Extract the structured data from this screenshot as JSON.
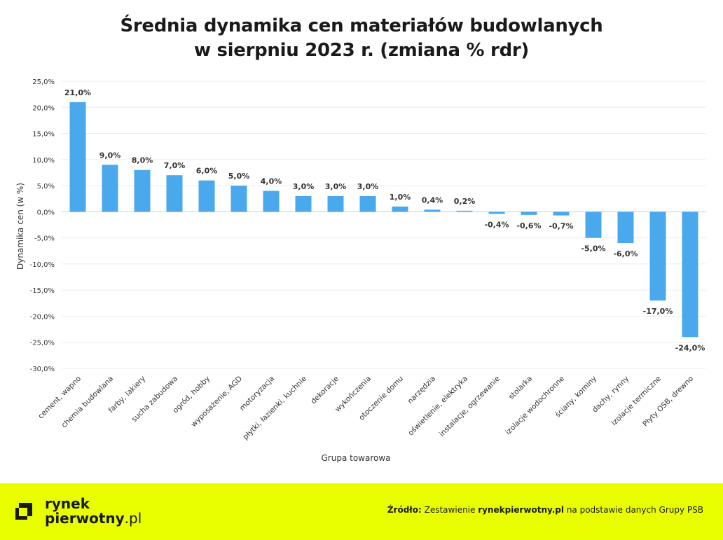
{
  "title_line1": "Średnia dynamika cen materiałów budowlanych",
  "title_line2": "w sierpniu 2023 r. (zmiana % rdr)",
  "chart_data": {
    "type": "bar",
    "categories": [
      "cement, wapno",
      "chemia budowlana",
      "farby, lakiery",
      "sucha zabudowa",
      "ogród, hobby",
      "wyposażenie, AGD",
      "motoryzacja",
      "płytki, łazienki, kuchnie",
      "dekoracje",
      "wykończenia",
      "otoczenie domu",
      "narzędzia",
      "oświetlenie, elektryka",
      "instalacje, ogrzewanie",
      "stolarka",
      "izolacje wodochronne",
      "ściany, kominy",
      "dachy, rynny",
      "izolacje termiczne",
      "Płyty OSB, drewno"
    ],
    "values": [
      21.0,
      9.0,
      8.0,
      7.0,
      6.0,
      5.0,
      4.0,
      3.0,
      3.0,
      3.0,
      1.0,
      0.4,
      0.2,
      -0.4,
      -0.6,
      -0.7,
      -5.0,
      -6.0,
      -17.0,
      -24.0
    ],
    "data_labels": [
      "21,0%",
      "9,0%",
      "8,0%",
      "7,0%",
      "6,0%",
      "5,0%",
      "4,0%",
      "3,0%",
      "3,0%",
      "3,0%",
      "1,0%",
      "0,4%",
      "0,2%",
      "-0,4%",
      "-0,6%",
      "-0,7%",
      "-5,0%",
      "-6,0%",
      "-17,0%",
      "-24,0%"
    ],
    "ylim": [
      -30,
      25
    ],
    "yticks": [
      25,
      20,
      15,
      10,
      5,
      0,
      -5,
      -10,
      -15,
      -20,
      -25,
      -30
    ],
    "ytick_labels": [
      "25,0%",
      "20,0%",
      "15,0%",
      "10,0%",
      "5,0%",
      "0,0%",
      "-5,0%",
      "-10,0%",
      "-15,0%",
      "-20,0%",
      "-25,0%",
      "-30,0%"
    ],
    "xlabel": "Grupa towarowa",
    "ylabel": "Dynamika cen (w %)",
    "grid": true,
    "bar_color": "#4aa8ec"
  },
  "footer": {
    "logo_line1": "rynek",
    "logo_line2_bold": "pierwotny",
    "logo_line2_rest": ".pl",
    "source_label": "Źródło:",
    "source_text1": "Zestawienie",
    "source_bold": "rynekpierwotny.pl",
    "source_text2": "na podstawie danych Grupy PSB",
    "background": "#e9ff00"
  }
}
